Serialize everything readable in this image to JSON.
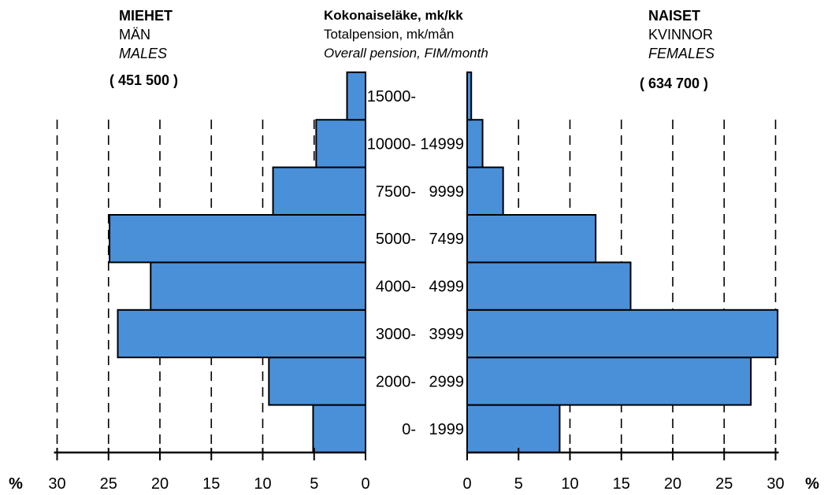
{
  "chart_data": {
    "type": "bar",
    "orientation": "horizontal-population-pyramid",
    "title": {
      "line1": "Kokonaiseläke, mk/kk",
      "line2": "Totalpension, mk/mån",
      "line3": "Overall pension, FIM/month"
    },
    "categories": [
      "0-",
      "2000-",
      "3000-",
      "4000-",
      "5000-",
      "7500-",
      "10000-",
      "15000-"
    ],
    "categories_upper": [
      "1999",
      "2999",
      "3999",
      "4999",
      "7499",
      "9999",
      "14999",
      ""
    ],
    "series": [
      {
        "side": "left",
        "label_fi": "MIEHET",
        "label_sv": "MÄN",
        "label_en": "MALES",
        "total": "( 451 500 )",
        "values": [
          5.1,
          9.4,
          24.1,
          20.9,
          24.9,
          9.0,
          4.8,
          1.8
        ]
      },
      {
        "side": "right",
        "label_fi": "NAISET",
        "label_sv": "KVINNOR",
        "label_en": "FEMALES",
        "total": "( 634 700 )",
        "values": [
          9.0,
          27.6,
          30.2,
          15.9,
          12.5,
          3.5,
          1.5,
          0.4
        ]
      }
    ],
    "axis": {
      "unit": "%",
      "ticks_left": [
        "30",
        "25",
        "20",
        "15",
        "10",
        "5",
        "0"
      ],
      "ticks_right": [
        "0",
        "5",
        "10",
        "15",
        "20",
        "25",
        "30"
      ],
      "range": [
        0,
        30
      ]
    },
    "bar_color": "#4a90d9",
    "grid": "dashed-vertical"
  }
}
